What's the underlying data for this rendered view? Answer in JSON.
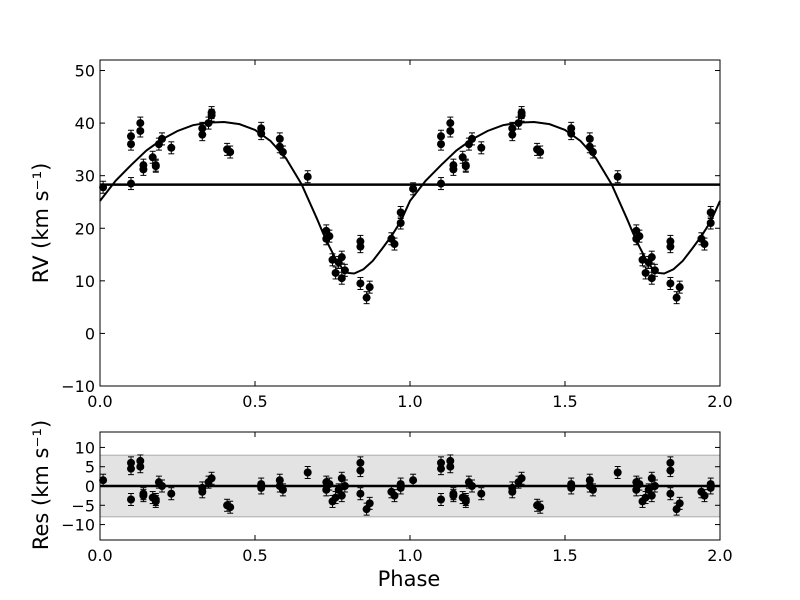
{
  "chart_data": [
    {
      "type": "scatter",
      "panel": "top",
      "xlabel": "",
      "ylabel": "RV (km s⁻¹)",
      "xlim": [
        0.0,
        2.0
      ],
      "ylim": [
        -10,
        52
      ],
      "xticks": [
        "0.0",
        "0.5",
        "1.0",
        "1.5",
        "2.0"
      ],
      "yticks": [
        "−10",
        "0",
        "10",
        "20",
        "30",
        "40",
        "50"
      ],
      "grid": false,
      "systemic_velocity": 28.3,
      "model_curve": {
        "x": [
          0.0,
          0.05,
          0.1,
          0.15,
          0.2,
          0.25,
          0.3,
          0.35,
          0.4,
          0.45,
          0.5,
          0.55,
          0.6,
          0.65,
          0.7,
          0.72,
          0.74,
          0.76,
          0.78,
          0.8,
          0.82,
          0.85,
          0.88,
          0.91,
          0.94,
          0.97,
          1.0,
          1.05,
          1.1,
          1.15,
          1.2,
          1.25,
          1.3,
          1.35,
          1.4,
          1.45,
          1.5,
          1.55,
          1.6,
          1.65,
          1.7,
          1.72,
          1.74,
          1.76,
          1.78,
          1.8,
          1.82,
          1.85,
          1.88,
          1.91,
          1.94,
          1.97,
          2.0
        ],
        "y": [
          25.2,
          29.0,
          32.0,
          34.8,
          36.9,
          38.5,
          39.6,
          40.1,
          40.2,
          39.8,
          38.7,
          36.6,
          33.3,
          28.4,
          21.8,
          19.0,
          16.5,
          14.2,
          12.5,
          11.5,
          11.4,
          12.2,
          13.8,
          16.1,
          18.5,
          21.3,
          25.2,
          29.0,
          32.0,
          34.8,
          36.9,
          38.5,
          39.6,
          40.1,
          40.2,
          39.8,
          38.7,
          36.6,
          33.3,
          28.4,
          21.8,
          19.0,
          16.5,
          14.2,
          12.5,
          11.5,
          11.4,
          12.2,
          13.8,
          16.1,
          18.5,
          21.3,
          25.2
        ]
      },
      "points": {
        "x": [
          0.01,
          0.1,
          0.1,
          0.1,
          0.13,
          0.13,
          0.14,
          0.14,
          0.17,
          0.18,
          0.18,
          0.19,
          0.2,
          0.23,
          0.33,
          0.33,
          0.35,
          0.36,
          0.36,
          0.41,
          0.42,
          0.52,
          0.52,
          0.58,
          0.58,
          0.59,
          0.67,
          0.73,
          0.73,
          0.74,
          0.75,
          0.76,
          0.77,
          0.78,
          0.78,
          0.79,
          0.84,
          0.84,
          0.84,
          0.86,
          0.87,
          0.94,
          0.95,
          0.97,
          0.97,
          1.01,
          1.1,
          1.1,
          1.1,
          1.13,
          1.13,
          1.14,
          1.14,
          1.17,
          1.18,
          1.18,
          1.19,
          1.2,
          1.23,
          1.33,
          1.33,
          1.35,
          1.36,
          1.36,
          1.41,
          1.42,
          1.52,
          1.52,
          1.58,
          1.58,
          1.59,
          1.67,
          1.73,
          1.73,
          1.74,
          1.75,
          1.76,
          1.77,
          1.78,
          1.78,
          1.79,
          1.84,
          1.84,
          1.84,
          1.86,
          1.87,
          1.94,
          1.95,
          1.97,
          1.97
        ],
        "y": [
          27.8,
          37.5,
          36.0,
          28.5,
          40.0,
          38.5,
          32.0,
          31.2,
          33.5,
          32.0,
          31.8,
          36.0,
          37.0,
          35.3,
          37.8,
          39.0,
          40.0,
          42.0,
          41.5,
          35.0,
          34.5,
          39.0,
          38.0,
          37.0,
          35.5,
          34.5,
          29.8,
          19.5,
          18.0,
          18.5,
          14.0,
          11.5,
          13.5,
          14.5,
          10.5,
          12.0,
          17.5,
          16.5,
          9.5,
          6.8,
          8.8,
          18.0,
          17.0,
          21.0,
          23.0,
          27.5,
          37.5,
          36.0,
          28.5,
          40.0,
          38.5,
          32.0,
          31.2,
          33.5,
          32.0,
          31.8,
          36.0,
          37.0,
          35.3,
          37.8,
          39.0,
          40.0,
          42.0,
          41.5,
          35.0,
          34.5,
          39.0,
          38.0,
          37.0,
          35.5,
          34.5,
          29.8,
          19.5,
          18.0,
          18.5,
          14.0,
          11.5,
          13.5,
          14.5,
          10.5,
          12.0,
          17.5,
          16.5,
          9.5,
          6.8,
          8.8,
          18.0,
          17.0,
          21.0,
          23.0
        ]
      }
    },
    {
      "type": "scatter",
      "panel": "bottom",
      "xlabel": "Phase",
      "ylabel": "Res (km s⁻¹)",
      "xlim": [
        0.0,
        2.0
      ],
      "ylim": [
        -14,
        14
      ],
      "xticks": [
        "0.0",
        "0.5",
        "1.0",
        "1.5",
        "2.0"
      ],
      "yticks": [
        "−10",
        "−5",
        "0",
        "5",
        "10"
      ],
      "grid": false,
      "band": [
        -8,
        8
      ],
      "points": {
        "x": [
          0.01,
          0.1,
          0.1,
          0.1,
          0.13,
          0.13,
          0.14,
          0.14,
          0.17,
          0.18,
          0.18,
          0.19,
          0.2,
          0.23,
          0.33,
          0.33,
          0.35,
          0.36,
          0.41,
          0.42,
          0.52,
          0.52,
          0.58,
          0.58,
          0.59,
          0.67,
          0.73,
          0.73,
          0.74,
          0.75,
          0.76,
          0.77,
          0.78,
          0.78,
          0.79,
          0.84,
          0.84,
          0.84,
          0.86,
          0.87,
          0.94,
          0.95,
          0.97,
          0.97,
          1.01,
          1.1,
          1.1,
          1.1,
          1.13,
          1.13,
          1.14,
          1.14,
          1.17,
          1.18,
          1.18,
          1.19,
          1.2,
          1.23,
          1.33,
          1.33,
          1.35,
          1.36,
          1.41,
          1.42,
          1.52,
          1.52,
          1.58,
          1.58,
          1.59,
          1.67,
          1.73,
          1.73,
          1.74,
          1.75,
          1.76,
          1.77,
          1.78,
          1.78,
          1.79,
          1.84,
          1.84,
          1.84,
          1.86,
          1.87,
          1.94,
          1.95,
          1.97,
          1.97
        ],
        "y": [
          1.5,
          6.0,
          4.5,
          -3.5,
          6.5,
          5.0,
          -2.0,
          -2.5,
          -3.0,
          -4.0,
          -3.5,
          1.0,
          0.0,
          -2.0,
          -1.5,
          -0.5,
          1.0,
          2.0,
          -5.0,
          -5.5,
          0.5,
          -0.5,
          1.5,
          0.0,
          -1.0,
          3.5,
          1.0,
          -1.0,
          0.5,
          -4.0,
          -3.0,
          -1.0,
          2.0,
          -2.5,
          0.0,
          6.0,
          4.0,
          -2.0,
          -6.0,
          -4.5,
          -1.5,
          -2.5,
          -0.5,
          0.5,
          1.5,
          6.0,
          4.5,
          -3.5,
          6.5,
          5.0,
          -2.0,
          -2.5,
          -3.0,
          -4.0,
          -3.5,
          1.0,
          0.0,
          -2.0,
          -1.5,
          -0.5,
          1.0,
          2.0,
          -5.0,
          -5.5,
          0.5,
          -0.5,
          1.5,
          0.0,
          -1.0,
          3.5,
          1.0,
          -1.0,
          0.5,
          -4.0,
          -3.0,
          -1.0,
          2.0,
          -2.5,
          0.0,
          6.0,
          4.0,
          -2.0,
          -6.0,
          -4.5,
          -1.5,
          -2.5,
          -0.5,
          0.5
        ]
      }
    }
  ]
}
